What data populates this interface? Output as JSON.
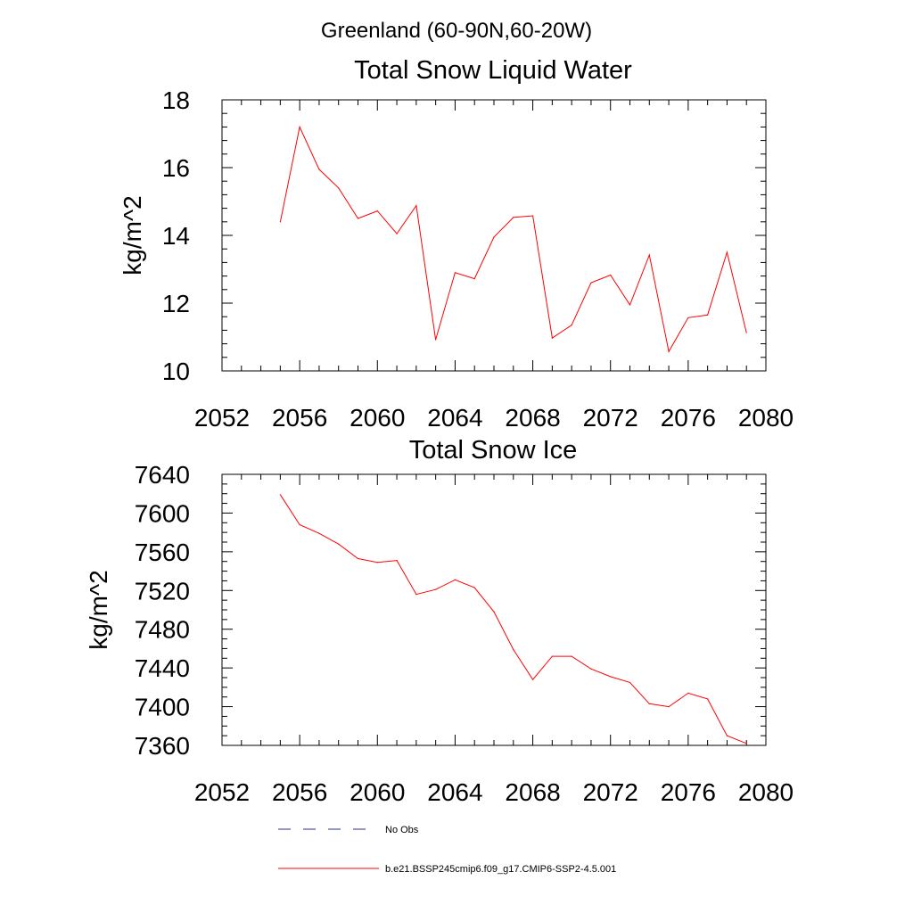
{
  "suptitle": "Greenland (60-90N,60-20W)",
  "series_color": "#ff0000",
  "obs_color": "#2b2b8f",
  "legend": [
    {
      "label": "No Obs",
      "style": "dashed",
      "color": "#2b2b8f"
    },
    {
      "label": "b.e21.BSSP245cmip6.f09_g17.CMIP6-SSP2-4.5.001",
      "style": "solid",
      "color": "#ff0000"
    }
  ],
  "chart_data": [
    {
      "type": "line",
      "title": "Total Snow Liquid Water",
      "xlabel": "",
      "ylabel": "kg/m^2",
      "xlim": [
        2052,
        2080
      ],
      "ylim": [
        10,
        18
      ],
      "xticks": [
        2052,
        2056,
        2060,
        2064,
        2068,
        2072,
        2076,
        2080
      ],
      "yticks": [
        10,
        12,
        14,
        16,
        18
      ],
      "grid": false,
      "series": [
        {
          "name": "b.e21.BSSP245cmip6.f09_g17.CMIP6-SSP2-4.5.001",
          "x": [
            2055,
            2056,
            2057,
            2058,
            2059,
            2060,
            2061,
            2062,
            2063,
            2064,
            2065,
            2066,
            2067,
            2068,
            2069,
            2070,
            2071,
            2072,
            2073,
            2074,
            2075,
            2076,
            2077,
            2078,
            2079
          ],
          "y": [
            14.4,
            17.2,
            15.95,
            15.4,
            14.5,
            14.72,
            14.05,
            14.88,
            10.92,
            12.9,
            12.72,
            13.95,
            14.53,
            14.58,
            10.97,
            11.35,
            12.6,
            12.83,
            11.95,
            13.42,
            10.57,
            11.57,
            11.65,
            13.5,
            11.13
          ]
        }
      ]
    },
    {
      "type": "line",
      "title": "Total Snow Ice",
      "xlabel": "",
      "ylabel": "kg/m^2",
      "xlim": [
        2052,
        2080
      ],
      "ylim": [
        7360,
        7640
      ],
      "xticks": [
        2052,
        2056,
        2060,
        2064,
        2068,
        2072,
        2076,
        2080
      ],
      "yticks": [
        7360,
        7400,
        7440,
        7480,
        7520,
        7560,
        7600,
        7640
      ],
      "grid": false,
      "series": [
        {
          "name": "b.e21.BSSP245cmip6.f09_g17.CMIP6-SSP2-4.5.001",
          "x": [
            2055,
            2056,
            2057,
            2058,
            2059,
            2060,
            2061,
            2062,
            2063,
            2064,
            2065,
            2066,
            2067,
            2068,
            2069,
            2070,
            2071,
            2072,
            2073,
            2074,
            2075,
            2076,
            2077,
            2078,
            2079
          ],
          "y": [
            7619,
            7588,
            7579,
            7568,
            7553,
            7549,
            7551,
            7516,
            7521,
            7531,
            7523,
            7498,
            7459,
            7428,
            7452,
            7452,
            7439,
            7431,
            7425,
            7403,
            7400,
            7414,
            7408,
            7370,
            7362
          ]
        }
      ]
    }
  ]
}
